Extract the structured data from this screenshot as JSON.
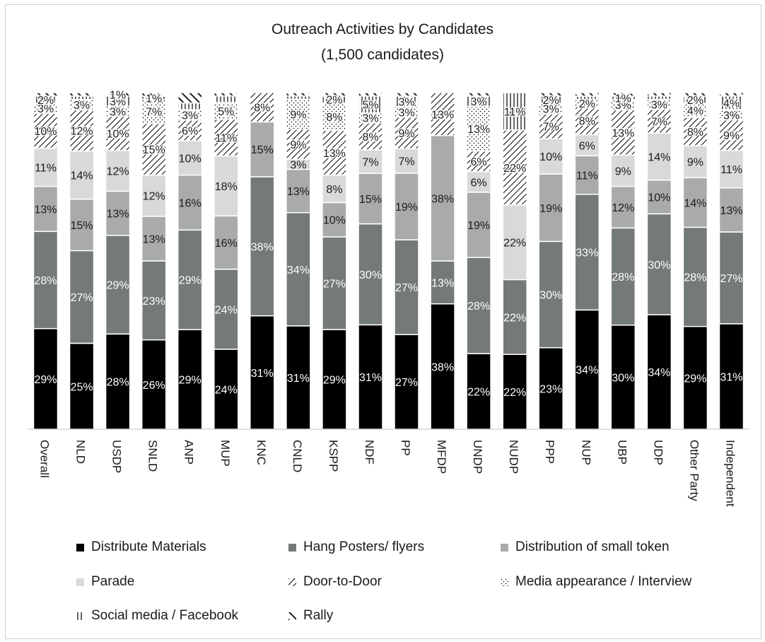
{
  "chart_data": {
    "type": "bar",
    "stacked": true,
    "percent_stacked": true,
    "title": "Outreach Activities by Candidates",
    "subtitle": "(1,500 candidates)",
    "xlabel": "",
    "ylabel": "",
    "ylim": [
      0,
      100
    ],
    "grid": false,
    "legend_position": "bottom",
    "categories": [
      "Overall",
      "NLD",
      "USDP",
      "SNLD",
      "ANP",
      "MUP",
      "KNC",
      "CNLD",
      "KSPP",
      "NDF",
      "PP",
      "MFDP",
      "UNDP",
      "NUDP",
      "PPP",
      "NUP",
      "UBP",
      "UDP",
      "Other Party",
      "Independent"
    ],
    "series": [
      {
        "name": "Distribute Materials",
        "color": "#000000",
        "pattern": "solid",
        "label_color": "#ffffff",
        "values": [
          29,
          25,
          28,
          26,
          29,
          24,
          31,
          31,
          29,
          31,
          27,
          38,
          22,
          22,
          23,
          34,
          30,
          34,
          29,
          31
        ]
      },
      {
        "name": "Hang Posters/ flyers",
        "color": "#747a78",
        "pattern": "solid",
        "label_color": "#ffffff",
        "values": [
          28,
          27,
          29,
          23,
          29,
          24,
          38,
          34,
          27,
          30,
          27,
          13,
          28,
          22,
          30,
          33,
          28,
          30,
          28,
          27
        ]
      },
      {
        "name": "Distribution of small token",
        "color": "#a9abab",
        "pattern": "solid",
        "label_color": "#1a1a1a",
        "values": [
          13,
          15,
          13,
          13,
          16,
          16,
          15,
          13,
          10,
          15,
          19,
          38,
          19,
          0,
          19,
          11,
          12,
          10,
          14,
          13
        ]
      },
      {
        "name": "Parade",
        "color": "#d9d9d9",
        "pattern": "solid",
        "label_color": "#1a1a1a",
        "values": [
          11,
          14,
          12,
          12,
          10,
          18,
          0,
          3,
          8,
          7,
          7,
          0,
          6,
          22,
          10,
          6,
          9,
          14,
          9,
          11
        ]
      },
      {
        "name": "Door-to-Door",
        "color": "#000000",
        "pattern": "diagonal",
        "label_color": "#1a1a1a",
        "values": [
          10,
          12,
          10,
          15,
          6,
          11,
          8,
          9,
          13,
          8,
          9,
          13,
          6,
          22,
          7,
          8,
          13,
          7,
          8,
          9
        ]
      },
      {
        "name": "Media appearance / Interview",
        "color": "#000000",
        "pattern": "dots",
        "label_color": "#1a1a1a",
        "values": [
          3,
          3,
          3,
          7,
          3,
          5,
          0,
          9,
          8,
          3,
          3,
          0,
          13,
          0,
          3,
          2,
          3,
          3,
          4,
          3
        ]
      },
      {
        "name": "Social media / Facebook",
        "color": "#000000",
        "pattern": "vertical",
        "label_color": "#1a1a1a",
        "values": [
          2,
          1,
          3,
          1,
          2,
          2,
          0,
          1,
          2,
          5,
          3,
          0,
          3,
          11,
          2,
          1,
          1,
          1,
          2,
          4
        ]
      },
      {
        "name": "Rally",
        "color": "#000000",
        "pattern": "wide-diagonal",
        "label_color": "#1a1a1a",
        "values": [
          1,
          1,
          1,
          1,
          3,
          1,
          0,
          1,
          1,
          1,
          1,
          0,
          1,
          0,
          1,
          1,
          1,
          1,
          1,
          1
        ]
      }
    ],
    "data_labels": [
      [
        "29%",
        "28%",
        "13%",
        "11%",
        "10%",
        "3%",
        "2%",
        ""
      ],
      [
        "25%",
        "27%",
        "15%",
        "14%",
        "12%",
        "3%",
        "",
        ""
      ],
      [
        "28%",
        "29%",
        "13%",
        "12%",
        "10%",
        "3%",
        "3%",
        "1%"
      ],
      [
        "26%",
        "23%",
        "13%",
        "12%",
        "15%",
        "7%",
        "1%",
        ""
      ],
      [
        "29%",
        "29%",
        "16%",
        "10%",
        "6%",
        "3%",
        "",
        ""
      ],
      [
        "24%",
        "24%",
        "16%",
        "18%",
        "11%",
        "5%",
        "",
        ""
      ],
      [
        "31%",
        "38%",
        "15%",
        "",
        "8%",
        "",
        "",
        ""
      ],
      [
        "31%",
        "34%",
        "13%",
        "3%",
        "9%",
        "9%",
        "",
        ""
      ],
      [
        "29%",
        "27%",
        "10%",
        "8%",
        "13%",
        "8%",
        "2%",
        ""
      ],
      [
        "31%",
        "30%",
        "15%",
        "7%",
        "8%",
        "3%",
        "5%",
        ""
      ],
      [
        "27%",
        "27%",
        "19%",
        "7%",
        "9%",
        "3%",
        "3%",
        ""
      ],
      [
        "38%",
        "13%",
        "38%",
        "",
        "13%",
        "",
        "",
        ""
      ],
      [
        "22%",
        "28%",
        "19%",
        "6%",
        "6%",
        "13%",
        "3%",
        ""
      ],
      [
        "22%",
        "22%",
        "",
        "22%",
        "22%",
        "",
        "11%",
        ""
      ],
      [
        "23%",
        "30%",
        "19%",
        "10%",
        "7%",
        "3%",
        "2%",
        ""
      ],
      [
        "34%",
        "33%",
        "11%",
        "6%",
        "8%",
        "2%",
        "",
        ""
      ],
      [
        "30%",
        "28%",
        "12%",
        "9%",
        "13%",
        "3%",
        "1%",
        ""
      ],
      [
        "34%",
        "30%",
        "10%",
        "14%",
        "7%",
        "3%",
        "",
        ""
      ],
      [
        "29%",
        "28%",
        "14%",
        "9%",
        "8%",
        "4%",
        "2%",
        ""
      ],
      [
        "31%",
        "27%",
        "13%",
        "11%",
        "9%",
        "3%",
        "4%",
        ""
      ]
    ]
  }
}
